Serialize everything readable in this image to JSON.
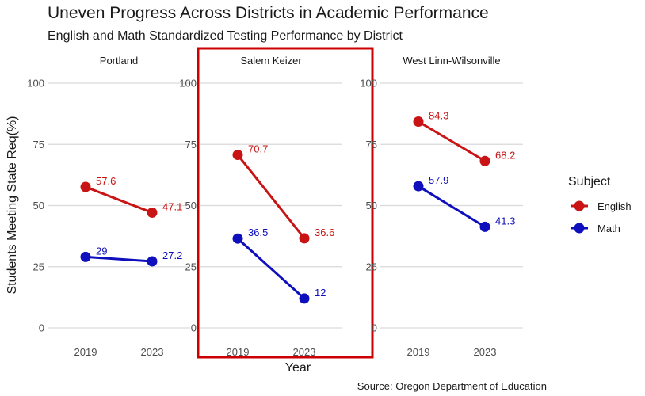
{
  "chart_data": {
    "type": "line",
    "title": "Uneven Progress Across Districts in Academic Performance",
    "subtitle": "English and Math Standardized Testing Performance by District",
    "xlabel": "Year",
    "ylabel": "Students Meeting State Req(%)",
    "caption": "Source: Oregon Department of Education",
    "ylim": [
      0,
      100
    ],
    "yticks": [
      "0",
      "25",
      "50",
      "75",
      "100"
    ],
    "categories": [
      "2019",
      "2023"
    ],
    "grid": true,
    "legend": {
      "title": "Subject",
      "position": "right",
      "entries": [
        {
          "name": "English",
          "color": "#c81414"
        },
        {
          "name": "Math",
          "color": "#0f0fbe"
        }
      ]
    },
    "highlight": {
      "panel": "Salem Keizer",
      "color": "#cc0000"
    },
    "panels": [
      {
        "name": "Portland",
        "series": [
          {
            "name": "English",
            "values": [
              57.6,
              47.1
            ],
            "labels": [
              "57.6",
              "47.1"
            ]
          },
          {
            "name": "Math",
            "values": [
              29,
              27.2
            ],
            "labels": [
              "29",
              "27.2"
            ]
          }
        ]
      },
      {
        "name": "Salem Keizer",
        "series": [
          {
            "name": "English",
            "values": [
              70.7,
              36.6
            ],
            "labels": [
              "70.7",
              "36.6"
            ]
          },
          {
            "name": "Math",
            "values": [
              36.5,
              12
            ],
            "labels": [
              "36.5",
              "12"
            ]
          }
        ]
      },
      {
        "name": "West Linn-Wilsonville",
        "series": [
          {
            "name": "English",
            "values": [
              84.3,
              68.2
            ],
            "labels": [
              "84.3",
              "68.2"
            ]
          },
          {
            "name": "Math",
            "values": [
              57.9,
              41.3
            ],
            "labels": [
              "57.9",
              "41.3"
            ]
          }
        ]
      }
    ]
  }
}
